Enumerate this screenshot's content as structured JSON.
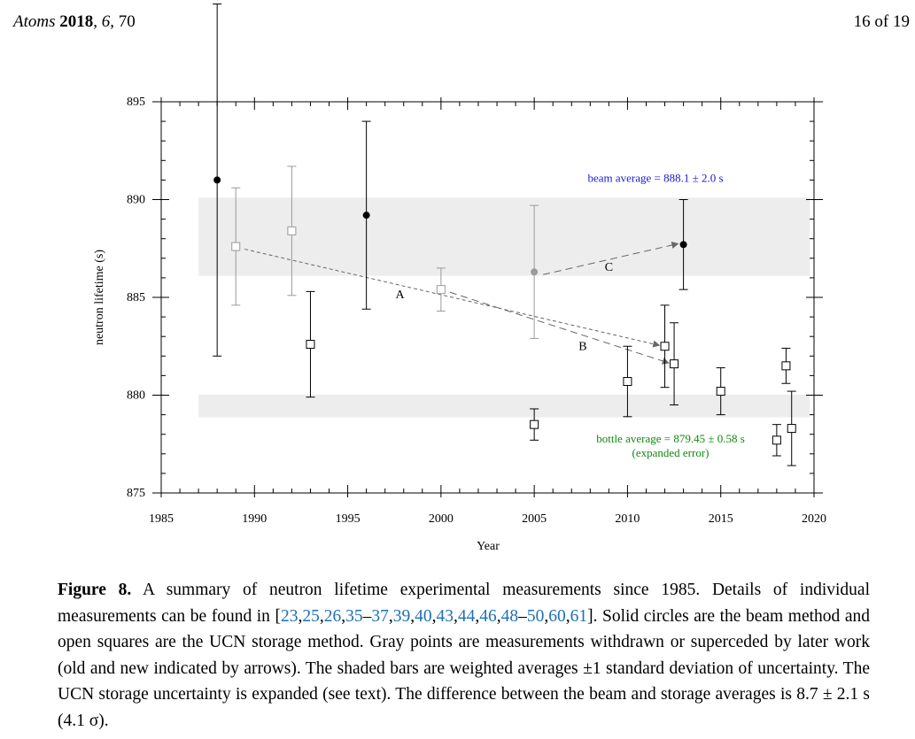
{
  "header": {
    "journal": "Atoms",
    "year": "2018",
    "volume": "6",
    "article": "70",
    "page": "16 of 19"
  },
  "chart_data": {
    "type": "scatter",
    "xlabel": "Year",
    "ylabel": "neutron lifetime (s)",
    "xlim": [
      1985,
      2020
    ],
    "ylim": [
      875,
      895
    ],
    "x_ticks": [
      "1985",
      "1990",
      "1995",
      "2000",
      "2005",
      "2010",
      "2015",
      "2020"
    ],
    "y_ticks": [
      "875",
      "880",
      "885",
      "890",
      "895"
    ],
    "grid": false,
    "bands": [
      {
        "y0": 886.1,
        "y1": 890.1,
        "label": "beam average = 888.1 ± 2.0 s",
        "color": "#1a1acc"
      },
      {
        "y0": 878.87,
        "y1": 880.03,
        "label": "bottle average = 879.45 ± 0.58 s",
        "sublabel": "(expanded error)",
        "color": "#118811"
      }
    ],
    "series": [
      {
        "method": "beam",
        "marker": "filled-circle",
        "points": [
          {
            "x": 1988.0,
            "y": 891.0,
            "yerr": 9.0,
            "withdrawn": false
          },
          {
            "x": 1996.0,
            "y": 889.2,
            "yerr": 4.8,
            "withdrawn": false
          },
          {
            "x": 2005.0,
            "y": 886.3,
            "yerr": 3.4,
            "withdrawn": true
          },
          {
            "x": 2013.0,
            "y": 887.7,
            "yerr": 2.3,
            "withdrawn": false
          }
        ]
      },
      {
        "method": "ucn-storage",
        "marker": "open-square",
        "points": [
          {
            "x": 1989.0,
            "y": 887.6,
            "yerr": 3.0,
            "withdrawn": true
          },
          {
            "x": 1992.0,
            "y": 888.4,
            "yerr": 3.3,
            "withdrawn": true
          },
          {
            "x": 1993.0,
            "y": 882.6,
            "yerr": 2.7,
            "withdrawn": false
          },
          {
            "x": 2000.0,
            "y": 885.4,
            "yerr": 1.1,
            "withdrawn": true
          },
          {
            "x": 2005.0,
            "y": 878.5,
            "yerr": 0.8,
            "withdrawn": false
          },
          {
            "x": 2010.0,
            "y": 880.7,
            "yerr": 1.8,
            "withdrawn": false
          },
          {
            "x": 2012.0,
            "y": 882.5,
            "yerr": 2.1,
            "withdrawn": false
          },
          {
            "x": 2012.5,
            "y": 881.6,
            "yerr": 2.1,
            "withdrawn": false
          },
          {
            "x": 2015.0,
            "y": 880.2,
            "yerr": 1.2,
            "withdrawn": false
          },
          {
            "x": 2018.0,
            "y": 877.7,
            "yerr": 0.8,
            "withdrawn": false
          },
          {
            "x": 2018.5,
            "y": 881.5,
            "yerr": 0.9,
            "withdrawn": false
          },
          {
            "x": 2018.8,
            "y": 878.3,
            "yerr": 1.9,
            "withdrawn": false
          }
        ]
      }
    ],
    "annotations": [
      {
        "label": "A",
        "from": [
          1989.0,
          887.6
        ],
        "to": [
          2012.0,
          882.5
        ],
        "label_at": [
          1997.8,
          884.95
        ],
        "style": "dotted"
      },
      {
        "label": "B",
        "from": [
          2000.0,
          885.4
        ],
        "to": [
          2012.5,
          881.6
        ],
        "label_at": [
          2007.6,
          882.3
        ],
        "style": "dashed"
      },
      {
        "label": "C",
        "from": [
          2005.0,
          886.3
        ],
        "to": [
          2013.0,
          887.7
        ],
        "label_at": [
          2009.0,
          886.35
        ],
        "style": "dashed"
      }
    ]
  },
  "caption": {
    "label": "Figure 8.",
    "text_1": "A summary of neutron lifetime experimental measurements since 1985. Details of individual measurements can be found in [",
    "citations": [
      "23",
      "25",
      "26",
      "35",
      "–",
      "37",
      "39",
      "40",
      "43",
      "44",
      "46",
      "48",
      "–",
      "50",
      "60",
      "61"
    ],
    "text_2": "]. Solid circles are the beam method and open squares are the UCN storage method. Gray points are measurements withdrawn or superceded by later work (old and new indicated by arrows). The shaded bars are weighted averages ±1 standard deviation of uncertainty. The UCN storage uncertainty is expanded (see text). The difference between the beam and storage averages is 8.7 ± 2.1 s (4.1 σ)."
  }
}
